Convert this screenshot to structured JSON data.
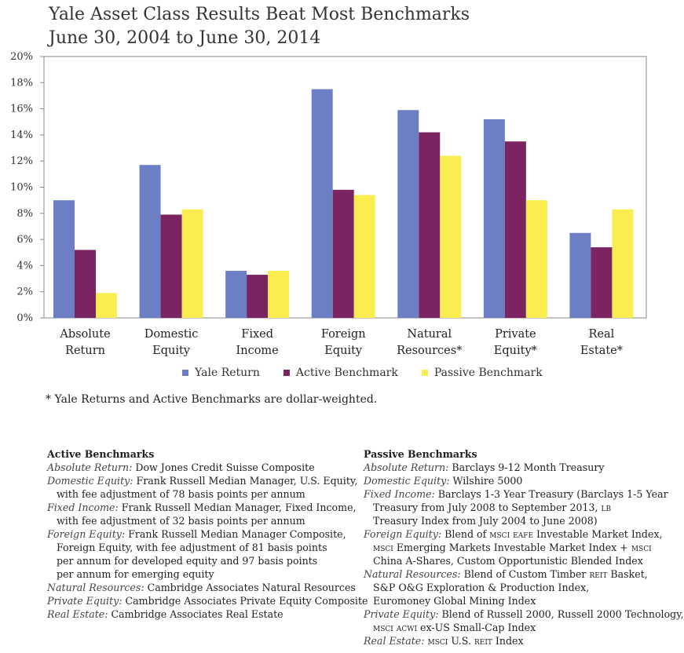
{
  "title_line1": "Yale Asset Class Results Beat Most Benchmarks",
  "title_line2": "June 30, 2004 to June 30, 2014",
  "chart_data": {
    "type": "bar",
    "categories": [
      [
        "Absolute",
        "Return"
      ],
      [
        "Domestic",
        "Equity"
      ],
      [
        "Fixed",
        "Income"
      ],
      [
        "Foreign",
        "Equity"
      ],
      [
        "Natural",
        "Resources*"
      ],
      [
        "Private",
        "Equity*"
      ],
      [
        "Real",
        "Estate*"
      ]
    ],
    "series": [
      {
        "name": "Yale Return",
        "color": "#6c7fc4",
        "values": [
          9.0,
          11.7,
          3.6,
          17.5,
          15.9,
          15.2,
          6.5
        ]
      },
      {
        "name": "Active Benchmark",
        "color": "#7b2461",
        "values": [
          5.2,
          7.9,
          3.3,
          9.8,
          14.2,
          13.5,
          5.4
        ]
      },
      {
        "name": "Passive Benchmark",
        "color": "#fbec4f",
        "values": [
          1.9,
          8.3,
          3.6,
          9.4,
          12.4,
          9.0,
          8.3
        ]
      }
    ],
    "yticks": [
      "0%",
      "2%",
      "4%",
      "6%",
      "8%",
      "10%",
      "12%",
      "14%",
      "16%",
      "18%",
      "20%"
    ],
    "ylim": [
      0,
      20
    ],
    "grid": false,
    "legend": "bottom"
  },
  "footnote": "* Yale Returns and Active Benchmarks are dollar-weighted.",
  "active": {
    "heading": "Active Benchmarks",
    "lines": [
      {
        "label": "Absolute Return:",
        "text": " Dow Jones Credit Suisse Composite"
      },
      {
        "label": "Domestic Equity:",
        "text": " Frank Russell Median Manager, U.S. Equity,"
      },
      {
        "label": "",
        "text": "with fee adjustment of 78 basis points per annum",
        "indent": true
      },
      {
        "label": "Fixed Income:",
        "text": " Frank Russell Median Manager, Fixed Income,"
      },
      {
        "label": "",
        "text": "with fee adjustment of 32 basis points per annum",
        "indent": true
      },
      {
        "label": "Foreign Equity:",
        "text": " Frank Russell Median Manager Composite,"
      },
      {
        "label": "",
        "text": "Foreign Equity, with fee adjustment of 81 basis points",
        "indent": true
      },
      {
        "label": "",
        "text": "per annum for developed equity and 97 basis points",
        "indent": true
      },
      {
        "label": "",
        "text": "per annum for emerging equity",
        "indent": true
      },
      {
        "label": "Natural Resources:",
        "text": " Cambridge Associates Natural Resources"
      },
      {
        "label": "Private Equity:",
        "text": " Cambridge Associates Private Equity Composite"
      },
      {
        "label": "Real Estate:",
        "text": " Cambridge Associates Real Estate"
      }
    ]
  },
  "passive": {
    "heading": "Passive Benchmarks",
    "lines": [
      {
        "label": "Absolute Return:",
        "text": " Barclays 9-12 Month Treasury"
      },
      {
        "label": "Domestic Equity:",
        "text": " Wilshire 5000"
      },
      {
        "label": "Fixed Income:",
        "text": " Barclays 1-3 Year Treasury (Barclays 1-5 Year"
      },
      {
        "label": "",
        "text": "Treasury from July 2008 to September 2013, LB",
        "indent": true
      },
      {
        "label": "",
        "text": "Treasury Index from July 2004 to June 2008)",
        "indent": true
      },
      {
        "label": "Foreign Equity:",
        "text": " Blend of MSCI EAFE Investable Market Index,"
      },
      {
        "label": "",
        "text": "MSCI Emerging Markets Investable Market Index + MSCI",
        "indent": true
      },
      {
        "label": "",
        "text": "China A-Shares, Custom Opportunistic Blended Index",
        "indent": true
      },
      {
        "label": "Natural Resources:",
        "text": " Blend of Custom Timber REIT Basket,"
      },
      {
        "label": "",
        "text": "S&P O&G Exploration & Production Index,",
        "indent": true
      },
      {
        "label": "",
        "text": "Euromoney Global Mining Index",
        "indent": true
      },
      {
        "label": "Private Equity:",
        "text": " Blend of Russell 2000, Russell 2000 Technology,"
      },
      {
        "label": "",
        "text": "MSCI ACWI ex-US Small-Cap Index",
        "indent": true
      },
      {
        "label": "Real Estate:",
        "text": " MSCI U.S. REIT Index"
      }
    ]
  }
}
